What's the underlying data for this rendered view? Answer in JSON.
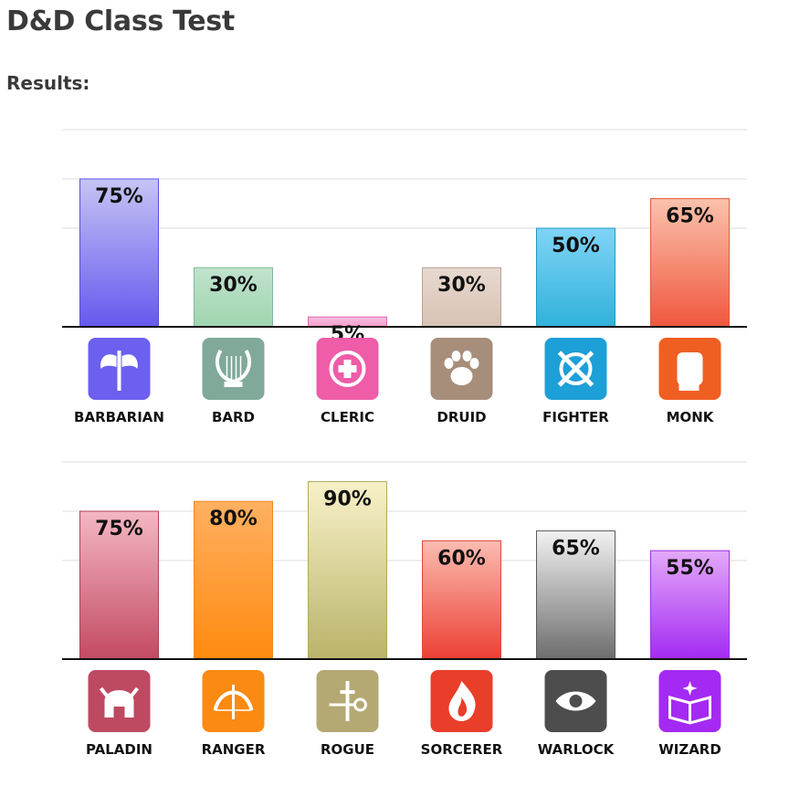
{
  "page": {
    "title": "D&D Class Test",
    "results_label": "Results:"
  },
  "chart_data": [
    {
      "type": "bar",
      "categories": [
        "BARBARIAN",
        "BARD",
        "CLERIC",
        "DRUID",
        "FIGHTER",
        "MONK"
      ],
      "values": [
        75,
        30,
        5,
        30,
        50,
        65
      ],
      "value_labels": [
        "75%",
        "30%",
        "5%",
        "30%",
        "50%",
        "65%"
      ],
      "unit": "%",
      "ylim": [
        0,
        100
      ],
      "grid": true,
      "icons": [
        "battle-axe-icon",
        "lyre-icon",
        "holy-symbol-icon",
        "paw-print-icon",
        "crossed-swords-shield-icon",
        "fist-icon"
      ],
      "colors": [
        {
          "top": "#c6c4f4",
          "bottom": "#6559ee",
          "border": "#5a4fe0",
          "icon": "#6b60f0"
        },
        {
          "top": "#c0e3cc",
          "bottom": "#9fd4b0",
          "border": "#7fb995",
          "icon": "#80a99a"
        },
        {
          "top": "#f8bfe0",
          "bottom": "#f39acb",
          "border": "#e066a8",
          "icon": "#ef5ca8"
        },
        {
          "top": "#e7d9d0",
          "bottom": "#d8c1b4",
          "border": "#b9a090",
          "icon": "#a78e7b"
        },
        {
          "top": "#7fd4f6",
          "bottom": "#30b2da",
          "border": "#1f9ac4",
          "icon": "#1d9fd8"
        },
        {
          "top": "#fbc2ac",
          "bottom": "#f0573e",
          "border": "#e05a3a",
          "icon": "#f05f22"
        }
      ]
    },
    {
      "type": "bar",
      "categories": [
        "PALADIN",
        "RANGER",
        "ROGUE",
        "SORCERER",
        "WARLOCK",
        "WIZARD"
      ],
      "values": [
        75,
        80,
        90,
        60,
        65,
        55
      ],
      "value_labels": [
        "75%",
        "80%",
        "90%",
        "60%",
        "65%",
        "55%"
      ],
      "unit": "%",
      "ylim": [
        0,
        100
      ],
      "grid": true,
      "icons": [
        "helmet-icon",
        "bow-and-arrow-icon",
        "key-and-dagger-icon",
        "flame-icon",
        "eye-icon",
        "spellbook-icon"
      ],
      "colors": [
        {
          "top": "#f4b7c3",
          "bottom": "#c34a62",
          "border": "#b3405a",
          "icon": "#be4a62"
        },
        {
          "top": "#ffb062",
          "bottom": "#ff8a0e",
          "border": "#f08a1e",
          "icon": "#fb8a12"
        },
        {
          "top": "#f8f1c8",
          "bottom": "#b9b36a",
          "border": "#b0a760",
          "icon": "#b4a873"
        },
        {
          "top": "#fbbcb0",
          "bottom": "#ec3f34",
          "border": "#e04a3a",
          "icon": "#e93e2a"
        },
        {
          "top": "#f2f2f2",
          "bottom": "#6d6d6d",
          "border": "#5a5a5a",
          "icon": "#4d4d4d"
        },
        {
          "top": "#e4a9f9",
          "bottom": "#a32af3",
          "border": "#9b30e0",
          "icon": "#a42af3"
        }
      ]
    }
  ]
}
